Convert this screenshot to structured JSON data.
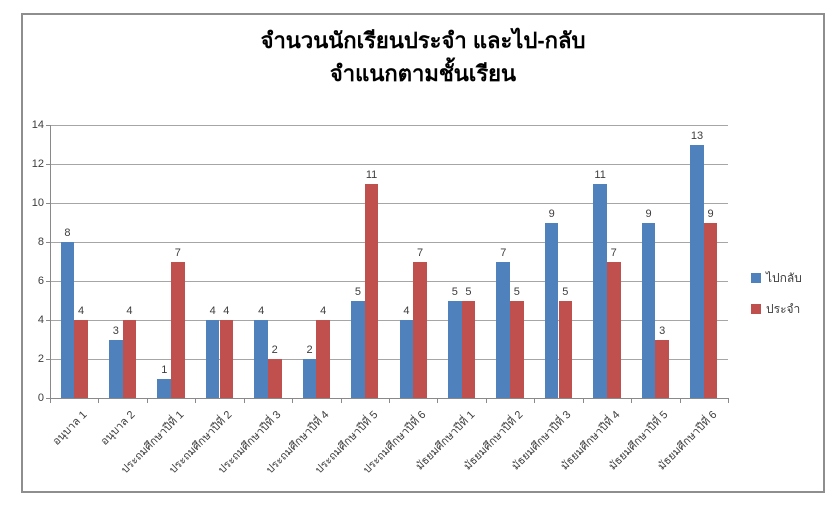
{
  "title": {
    "line1": "จำนวนนักเรียนประจำ และไป-กลับ",
    "line2": "จำแนกตามชั้นเรียน"
  },
  "colors": {
    "series_blue": "#4f81bd",
    "series_red": "#c0504d",
    "gridline": "#a6a6a6",
    "axis": "#898989",
    "frame_border": "#8e8e8e",
    "label_text": "#3d3d3d"
  },
  "y_axis": {
    "tick_labels": [
      "0",
      "2",
      "4",
      "6",
      "8",
      "10",
      "12",
      "14"
    ]
  },
  "legend": {
    "position": "right"
  },
  "chart_data": {
    "type": "bar",
    "title": "จำนวนนักเรียนประจำ และไป-กลับ จำแนกตามชั้นเรียน",
    "categories": [
      "อนุบาล 1",
      "อนุบาล 2",
      "ประถมศึกษาปีที่ 1",
      "ประถมศึกษาปีที่ 2",
      "ประถมศึกษาปีที่ 3",
      "ประถมศึกษาปีที่ 4",
      "ประถมศึกษาปีที่ 5",
      "ประถมศึกษาปีที่ 6",
      "มัธยมศึกษาปีที่ 1",
      "มัธยมศึกษาปีที่ 2",
      "มัธยมศึกษาปีที่ 3",
      "มัธยมศึกษาปีที่ 4",
      "มัธยมศึกษาปีที่ 5",
      "มัธยมศึกษาปีที่ 6"
    ],
    "series": [
      {
        "name": "ไปกลับ",
        "color": "#4f81bd",
        "values": [
          8,
          3,
          1,
          4,
          4,
          2,
          5,
          4,
          5,
          7,
          9,
          11,
          9,
          13
        ]
      },
      {
        "name": "ประจำ",
        "color": "#c0504d",
        "values": [
          4,
          4,
          7,
          4,
          2,
          4,
          11,
          7,
          5,
          5,
          5,
          7,
          3,
          9
        ]
      }
    ],
    "ylim": [
      0,
      14
    ],
    "ytick_step": 2,
    "grid": true,
    "legend_position": "right",
    "data_labels": true,
    "xlabel": "",
    "ylabel": ""
  }
}
